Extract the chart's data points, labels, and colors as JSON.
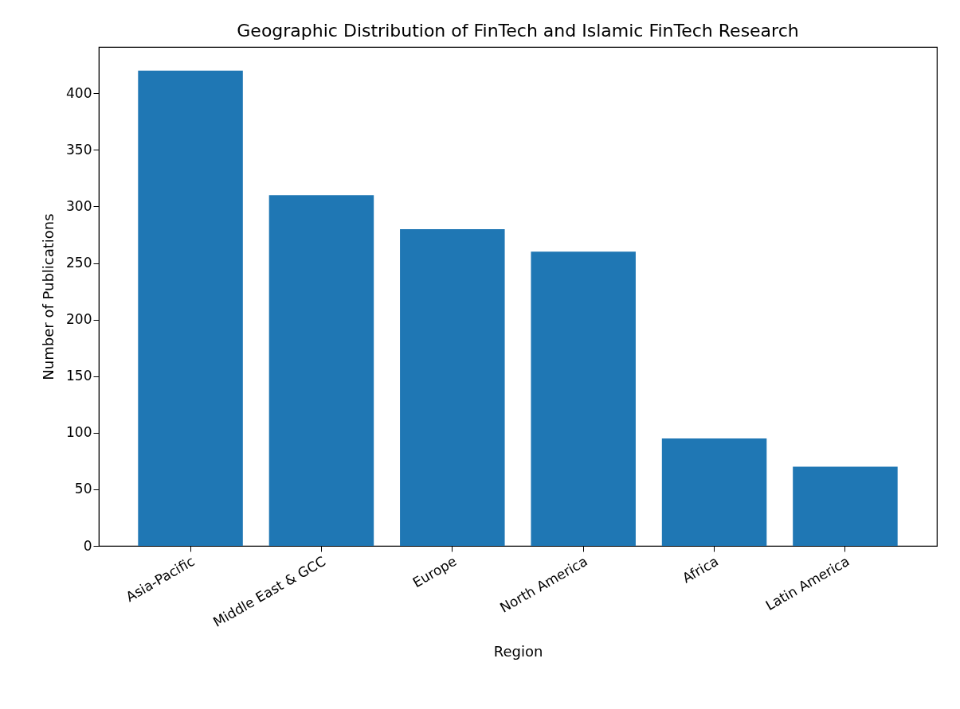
{
  "chart_data": {
    "type": "bar",
    "title": "Geographic Distribution of FinTech and Islamic FinTech Research",
    "xlabel": "Region",
    "ylabel": "Number of Publications",
    "categories": [
      "Asia-Pacific",
      "Middle East & GCC",
      "Europe",
      "North America",
      "Africa",
      "Latin America"
    ],
    "values": [
      420,
      310,
      280,
      260,
      95,
      70
    ],
    "color": "#1f77b4",
    "ylim": [
      0,
      441
    ],
    "yticks": [
      0,
      50,
      100,
      150,
      200,
      250,
      300,
      350,
      400
    ],
    "grid": false
  }
}
